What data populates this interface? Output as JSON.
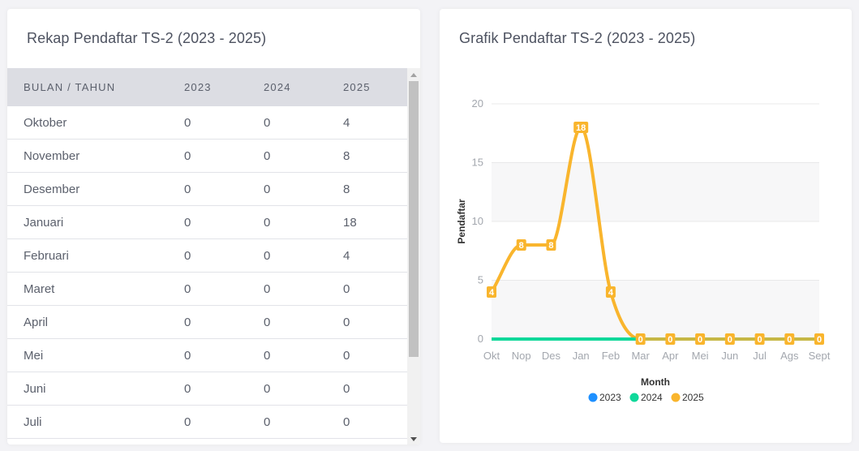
{
  "table_card": {
    "title": "Rekap Pendaftar TS-2 (2023 - 2025)",
    "headers": [
      "BULAN / TAHUN",
      "2023",
      "2024",
      "2025"
    ],
    "rows": [
      [
        "Oktober",
        "0",
        "0",
        "4"
      ],
      [
        "November",
        "0",
        "0",
        "8"
      ],
      [
        "Desember",
        "0",
        "0",
        "8"
      ],
      [
        "Januari",
        "0",
        "0",
        "18"
      ],
      [
        "Februari",
        "0",
        "0",
        "4"
      ],
      [
        "Maret",
        "0",
        "0",
        "0"
      ],
      [
        "April",
        "0",
        "0",
        "0"
      ],
      [
        "Mei",
        "0",
        "0",
        "0"
      ],
      [
        "Juni",
        "0",
        "0",
        "0"
      ],
      [
        "Juli",
        "0",
        "0",
        "0"
      ]
    ]
  },
  "chart_card": {
    "title": "Grafik Pendaftar TS-2 (2023 - 2025)"
  },
  "chart_data": {
    "type": "line",
    "title": "Grafik Pendaftar TS-2 (2023 - 2025)",
    "xlabel": "Month",
    "ylabel": "Pendaftar",
    "categories": [
      "Okt",
      "Nop",
      "Des",
      "Jan",
      "Feb",
      "Mar",
      "Apr",
      "Mei",
      "Jun",
      "Jul",
      "Ags",
      "Sept"
    ],
    "ylim": [
      0,
      20
    ],
    "yticks": [
      0,
      5,
      10,
      15,
      20
    ],
    "grid": true,
    "legend_position": "bottom",
    "series": [
      {
        "name": "2023",
        "color": "#1e90ff",
        "values": [
          0,
          0,
          0,
          0,
          0,
          0,
          0,
          0,
          0,
          0,
          0,
          0
        ]
      },
      {
        "name": "2024",
        "color": "#10d89a",
        "values": [
          0,
          0,
          0,
          0,
          0,
          0,
          0,
          0,
          0,
          0,
          0,
          0
        ]
      },
      {
        "name": "2025",
        "color": "#f9b52d",
        "values": [
          4,
          8,
          8,
          18,
          4,
          0,
          0,
          0,
          0,
          0,
          0,
          0
        ]
      }
    ]
  }
}
